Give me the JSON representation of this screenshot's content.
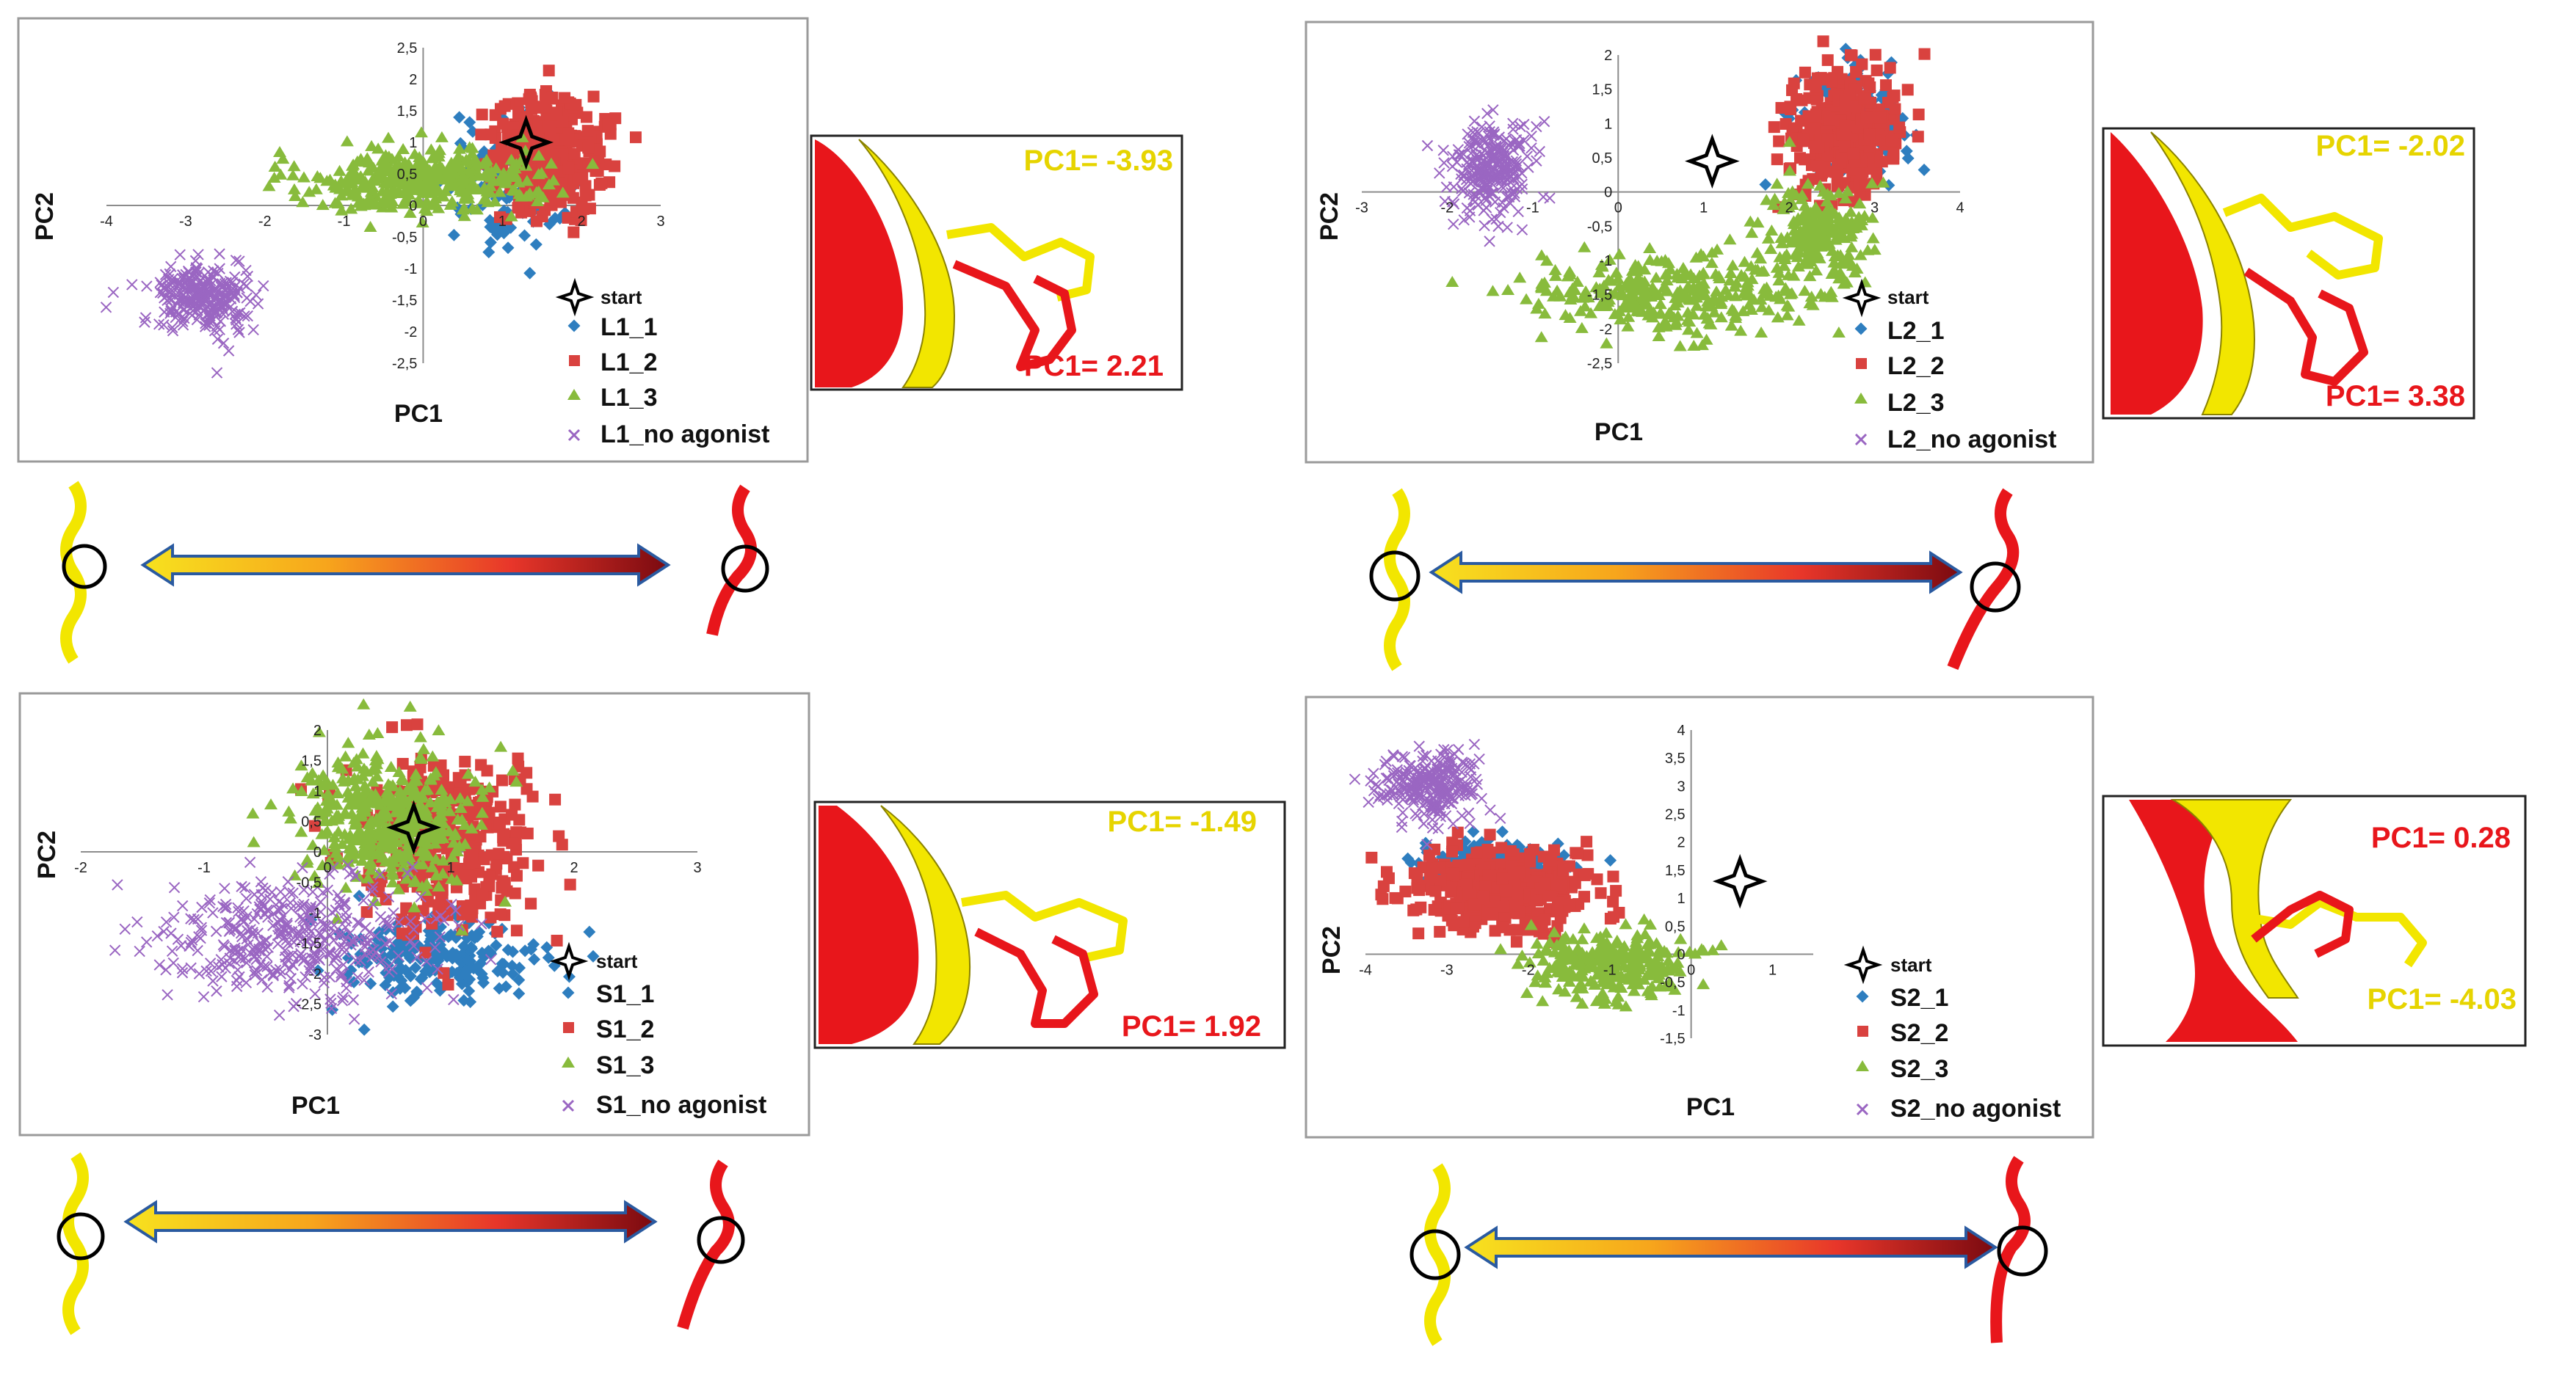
{
  "colors": {
    "series1": "#2e7ebf",
    "series2": "#d9423f",
    "series3": "#88bb3c",
    "no_agonist": "#9a66c2",
    "start": "#000000",
    "yellow": "#f2e600",
    "red": "#e8161b",
    "inset_yellow_text": "#e6d400",
    "inset_red_text": "#e8161b"
  },
  "chart_data": [
    {
      "id": "L1",
      "type": "scatter",
      "xlabel": "PC1",
      "ylabel": "PC2",
      "xticks": [
        "-4",
        "-3",
        "-2",
        "-1",
        "0",
        "1",
        "2",
        "3"
      ],
      "yticks": [
        "2,5",
        "2",
        "1,5",
        "1",
        "0,5",
        "0",
        "-0,5",
        "-1",
        "-1,5",
        "-2",
        "-2,5"
      ],
      "xlim": [
        -4,
        3
      ],
      "ylim": [
        -2.5,
        2.5
      ],
      "start": [
        1.3,
        1.0
      ],
      "legend": {
        "start": "start",
        "s1": "L1_1",
        "s2": "L1_2",
        "s3": "L1_3",
        "s4": "L1_no agonist"
      },
      "clusters": [
        {
          "series": "series1",
          "cx": 1.0,
          "cy": 0.3,
          "sx": 0.35,
          "sy": 0.55,
          "n": 110
        },
        {
          "series": "series2",
          "cx": 1.6,
          "cy": 0.8,
          "sx": 0.35,
          "sy": 0.45,
          "n": 380
        },
        {
          "series": "series3",
          "cx": 0.0,
          "cy": 0.4,
          "sx": 0.75,
          "sy": 0.25,
          "n": 420
        },
        {
          "series": "no_agonist",
          "cx": -2.8,
          "cy": -1.45,
          "sx": 0.3,
          "sy": 0.28,
          "n": 260
        }
      ],
      "inset": {
        "top": "PC1= -3.93",
        "bottom": "PC1= 2.21"
      }
    },
    {
      "id": "L2",
      "type": "scatter",
      "xlabel": "PC1",
      "ylabel": "PC2",
      "xticks": [
        "-3",
        "-2",
        "-1",
        "0",
        "1",
        "2",
        "3",
        "4"
      ],
      "yticks": [
        "2",
        "1,5",
        "1",
        "0,5",
        "0",
        "-0,5",
        "-1",
        "-1,5",
        "-2",
        "-2,5"
      ],
      "xlim": [
        -3,
        4
      ],
      "ylim": [
        -2.5,
        2
      ],
      "start": [
        1.1,
        0.45
      ],
      "legend": {
        "start": "start",
        "s1": "L2_1",
        "s2": "L2_2",
        "s3": "L2_3",
        "s4": "L2_no agonist"
      },
      "clusters": [
        {
          "series": "series1",
          "cx": 2.7,
          "cy": 1.05,
          "sx": 0.3,
          "sy": 0.35,
          "n": 180
        },
        {
          "series": "series2",
          "cx": 2.6,
          "cy": 0.9,
          "sx": 0.3,
          "sy": 0.4,
          "n": 420
        },
        {
          "series": "series3",
          "cx": 0.6,
          "cy": -1.5,
          "sx": 0.8,
          "sy": 0.3,
          "n": 300
        },
        {
          "series": "series3",
          "cx": 2.3,
          "cy": -0.6,
          "sx": 0.35,
          "sy": 0.4,
          "n": 200
        },
        {
          "series": "no_agonist",
          "cx": -1.5,
          "cy": 0.4,
          "sx": 0.25,
          "sy": 0.35,
          "n": 260
        }
      ],
      "inset": {
        "top": "PC1= -2.02",
        "bottom": "PC1= 3.38"
      }
    },
    {
      "id": "S1",
      "type": "scatter",
      "xlabel": "PC1",
      "ylabel": "PC2",
      "xticks": [
        "-2",
        "-1",
        "0",
        "1",
        "2",
        "3"
      ],
      "yticks": [
        "2",
        "1,5",
        "1",
        "0,5",
        "0",
        "-0,5",
        "-1",
        "-1,5",
        "-2",
        "-2,5",
        "-3"
      ],
      "xlim": [
        -2,
        3
      ],
      "ylim": [
        -3,
        2
      ],
      "start": [
        0.7,
        0.4
      ],
      "legend": {
        "start": "start",
        "s1": "S1_1",
        "s2": "S1_2",
        "s3": "S1_3",
        "s4": "S1_no agonist"
      },
      "clusters": [
        {
          "series": "series1",
          "cx": 0.9,
          "cy": -1.7,
          "sx": 0.4,
          "sy": 0.35,
          "n": 200
        },
        {
          "series": "series2",
          "cx": 1.0,
          "cy": 0.1,
          "sx": 0.4,
          "sy": 0.7,
          "n": 320
        },
        {
          "series": "series3",
          "cx": 0.5,
          "cy": 0.5,
          "sx": 0.35,
          "sy": 0.55,
          "n": 420
        },
        {
          "series": "no_agonist",
          "cx": -0.3,
          "cy": -1.4,
          "sx": 0.55,
          "sy": 0.5,
          "n": 380
        }
      ],
      "inset": {
        "top": "PC1= -1.49",
        "bottom": "PC1= 1.92"
      }
    },
    {
      "id": "S2",
      "type": "scatter",
      "xlabel": "PC1",
      "ylabel": "PC2",
      "xticks": [
        "-4",
        "-3",
        "-2",
        "-1",
        "0",
        "1"
      ],
      "yticks": [
        "4",
        "3,5",
        "3",
        "2,5",
        "2",
        "1,5",
        "1",
        "0,5",
        "0",
        "-0,5",
        "-1",
        "-1,5"
      ],
      "xlim": [
        -4,
        1.5
      ],
      "ylim": [
        -1.5,
        4
      ],
      "start": [
        0.6,
        1.3
      ],
      "legend": {
        "start": "start",
        "s1": "S2_1",
        "s2": "S2_2",
        "s3": "S2_3",
        "s4": "S2_no agonist"
      },
      "clusters": [
        {
          "series": "series1",
          "cx": -2.5,
          "cy": 1.6,
          "sx": 0.45,
          "sy": 0.2,
          "n": 200
        },
        {
          "series": "series2",
          "cx": -2.3,
          "cy": 1.15,
          "sx": 0.55,
          "sy": 0.35,
          "n": 380
        },
        {
          "series": "series3",
          "cx": -1.0,
          "cy": -0.2,
          "sx": 0.5,
          "sy": 0.3,
          "n": 280
        },
        {
          "series": "no_agonist",
          "cx": -3.2,
          "cy": 3.0,
          "sx": 0.3,
          "sy": 0.3,
          "n": 260
        }
      ],
      "inset": {
        "top": "PC1= 0.28",
        "bottom": "PC1= -4.03"
      }
    }
  ]
}
